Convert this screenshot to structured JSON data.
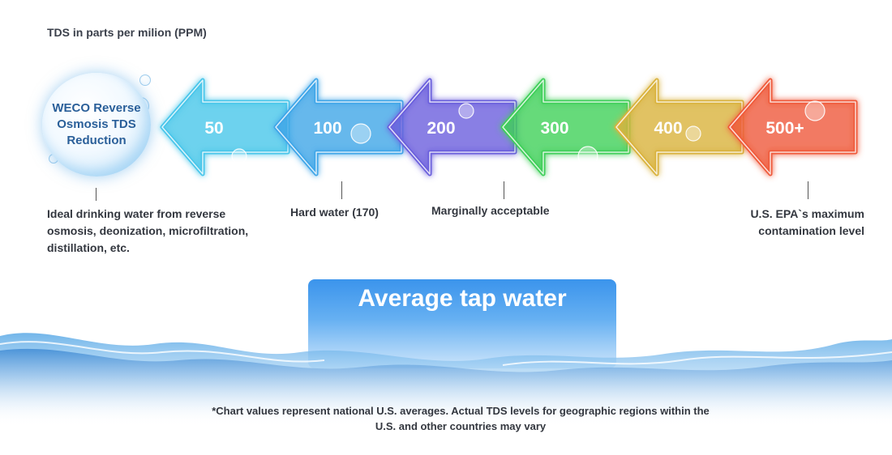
{
  "title": "TDS in parts per milion (PPM)",
  "bubble": {
    "label": "WECO Reverse Osmosis TDS Reduction",
    "icon": "water-bubble-icon"
  },
  "scale": [
    {
      "value": "50",
      "color": "#49c6ea"
    },
    {
      "value": "100",
      "color": "#3fa6e8"
    },
    {
      "value": "200",
      "color": "#6b5fdc"
    },
    {
      "value": "300",
      "color": "#3fcf5a"
    },
    {
      "value": "400",
      "color": "#d9b23c"
    },
    {
      "value": "500+",
      "color": "#ef5a3a"
    }
  ],
  "annotations": {
    "ideal": "Ideal drinking water from reverse osmosis, deonization, microfiltration, distillation, etc.",
    "hard": "Hard water (170)",
    "marginal": "Marginally acceptable",
    "epa": "U.S. EPA`s maximum contamination level"
  },
  "tap_water": {
    "label": "Average tap water",
    "color": "#3b94ec"
  },
  "footnote": "*Chart values represent national U.S. averages. Actual TDS levels for geographic regions within the U.S. and other countries may vary"
}
